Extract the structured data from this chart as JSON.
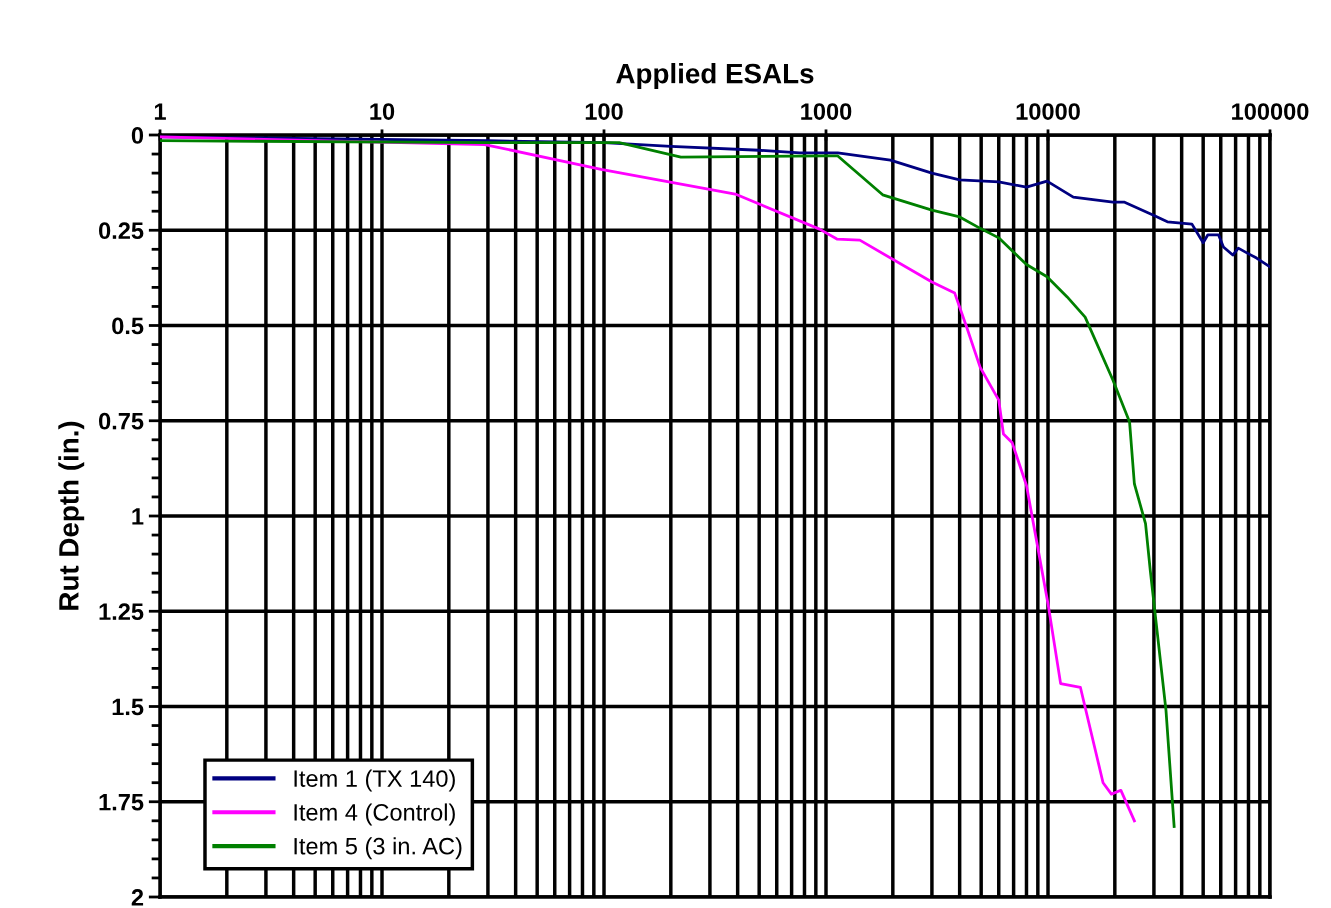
{
  "chart_data": {
    "type": "line",
    "xlabel": "Applied ESALs",
    "ylabel": "Rut Depth (in.)",
    "log": "x",
    "grid": true,
    "legend": "bottom left",
    "marker": "none",
    "line_style": "solid",
    "xlim": [
      1,
      100000
    ],
    "xticks": [
      1,
      10,
      100,
      1000,
      10000,
      100000
    ],
    "ylim": [
      2,
      0
    ],
    "yticks": [
      0,
      0.25,
      0.5,
      0.75,
      1,
      1.25,
      1.5,
      1.75,
      2
    ],
    "series": [
      {
        "name": "Item 1 (TX 140)",
        "color": "#000080",
        "x": [
          1,
          30,
          100,
          200,
          500,
          760,
          1130,
          1950,
          3000,
          4000,
          6000,
          8000,
          9900,
          13000,
          19600,
          22000,
          29700,
          34500,
          44500,
          50000,
          52500,
          58600,
          61700,
          68000,
          72000,
          79000,
          87000,
          100000
        ],
        "values": [
          0.005,
          0.015,
          0.02,
          0.03,
          0.04,
          0.047,
          0.047,
          0.066,
          0.1,
          0.118,
          0.123,
          0.137,
          0.121,
          0.163,
          0.176,
          0.176,
          0.21,
          0.228,
          0.234,
          0.283,
          0.262,
          0.262,
          0.294,
          0.315,
          0.297,
          0.31,
          0.323,
          0.346
        ]
      },
      {
        "name": "Item 4 (Control)",
        "color": "#ff00ff",
        "x": [
          1,
          29,
          97,
          390,
          935,
          1120,
          1420,
          3000,
          3800,
          4300,
          4950,
          6000,
          6300,
          6900,
          8000,
          10000,
          11400,
          14000,
          17700,
          19300,
          21300,
          24500
        ],
        "values": [
          0.005,
          0.025,
          0.09,
          0.155,
          0.247,
          0.273,
          0.276,
          0.386,
          0.415,
          0.504,
          0.61,
          0.696,
          0.785,
          0.808,
          0.92,
          1.23,
          1.44,
          1.45,
          1.7,
          1.73,
          1.72,
          1.8
        ]
      },
      {
        "name": "Item 5 (3 in. AC)",
        "color": "#008000",
        "x": [
          1,
          30,
          117,
          222,
          1000,
          1130,
          1800,
          3000,
          4000,
          4950,
          6000,
          8000,
          9900,
          12200,
          14700,
          19600,
          23300,
          24500,
          27500,
          28900,
          34000,
          37000
        ],
        "values": [
          0.015,
          0.02,
          0.02,
          0.058,
          0.055,
          0.055,
          0.157,
          0.197,
          0.215,
          0.245,
          0.27,
          0.34,
          0.372,
          0.425,
          0.478,
          0.643,
          0.753,
          0.916,
          1.02,
          1.144,
          1.51,
          1.815
        ]
      }
    ]
  }
}
